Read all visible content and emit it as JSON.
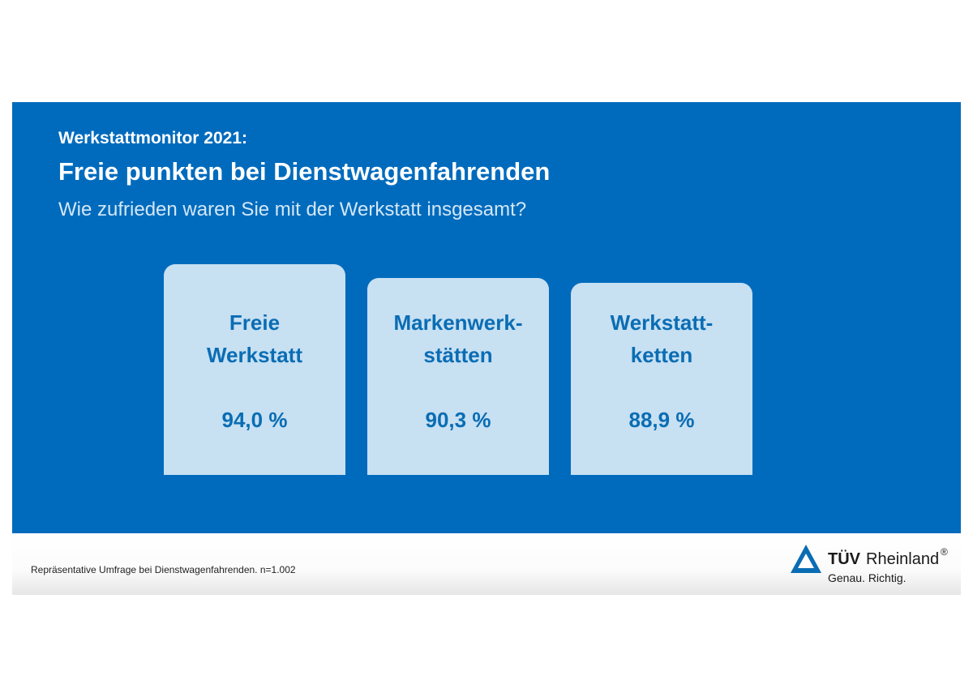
{
  "header": {
    "kicker": "Werkstattmonitor 2021:",
    "title": "Freie punkten bei Dienstwagenfahrenden",
    "question": "Wie zufrieden waren Sie mit der Werkstatt insgesamt?"
  },
  "chart_data": {
    "type": "bar",
    "categories": [
      "Freie Werkstatt",
      "Markenwerkstätten",
      "Werkstattketten"
    ],
    "category_lines": [
      [
        "Freie",
        "Werkstatt"
      ],
      [
        "Markenwerk-",
        "stätten"
      ],
      [
        "Werkstatt-",
        "ketten"
      ]
    ],
    "values": [
      94.0,
      90.3,
      88.9
    ],
    "value_labels": [
      "94,0 %",
      "90,3 %",
      "88,9 %"
    ],
    "unit": "%",
    "colors": {
      "background": "#006bbd",
      "card": "#c7e0f2",
      "text": "#0a6db4"
    }
  },
  "footer": {
    "source": "Repräsentative Umfrage bei Dienstwagenfahrenden. n=1.002",
    "logo": {
      "brand_bold": "TÜV",
      "brand_regular": "Rheinland",
      "registered_mark": "®",
      "tagline": "Genau. Richtig.",
      "icon": "tuv-triangle-icon",
      "color": "#0a6db4"
    }
  }
}
